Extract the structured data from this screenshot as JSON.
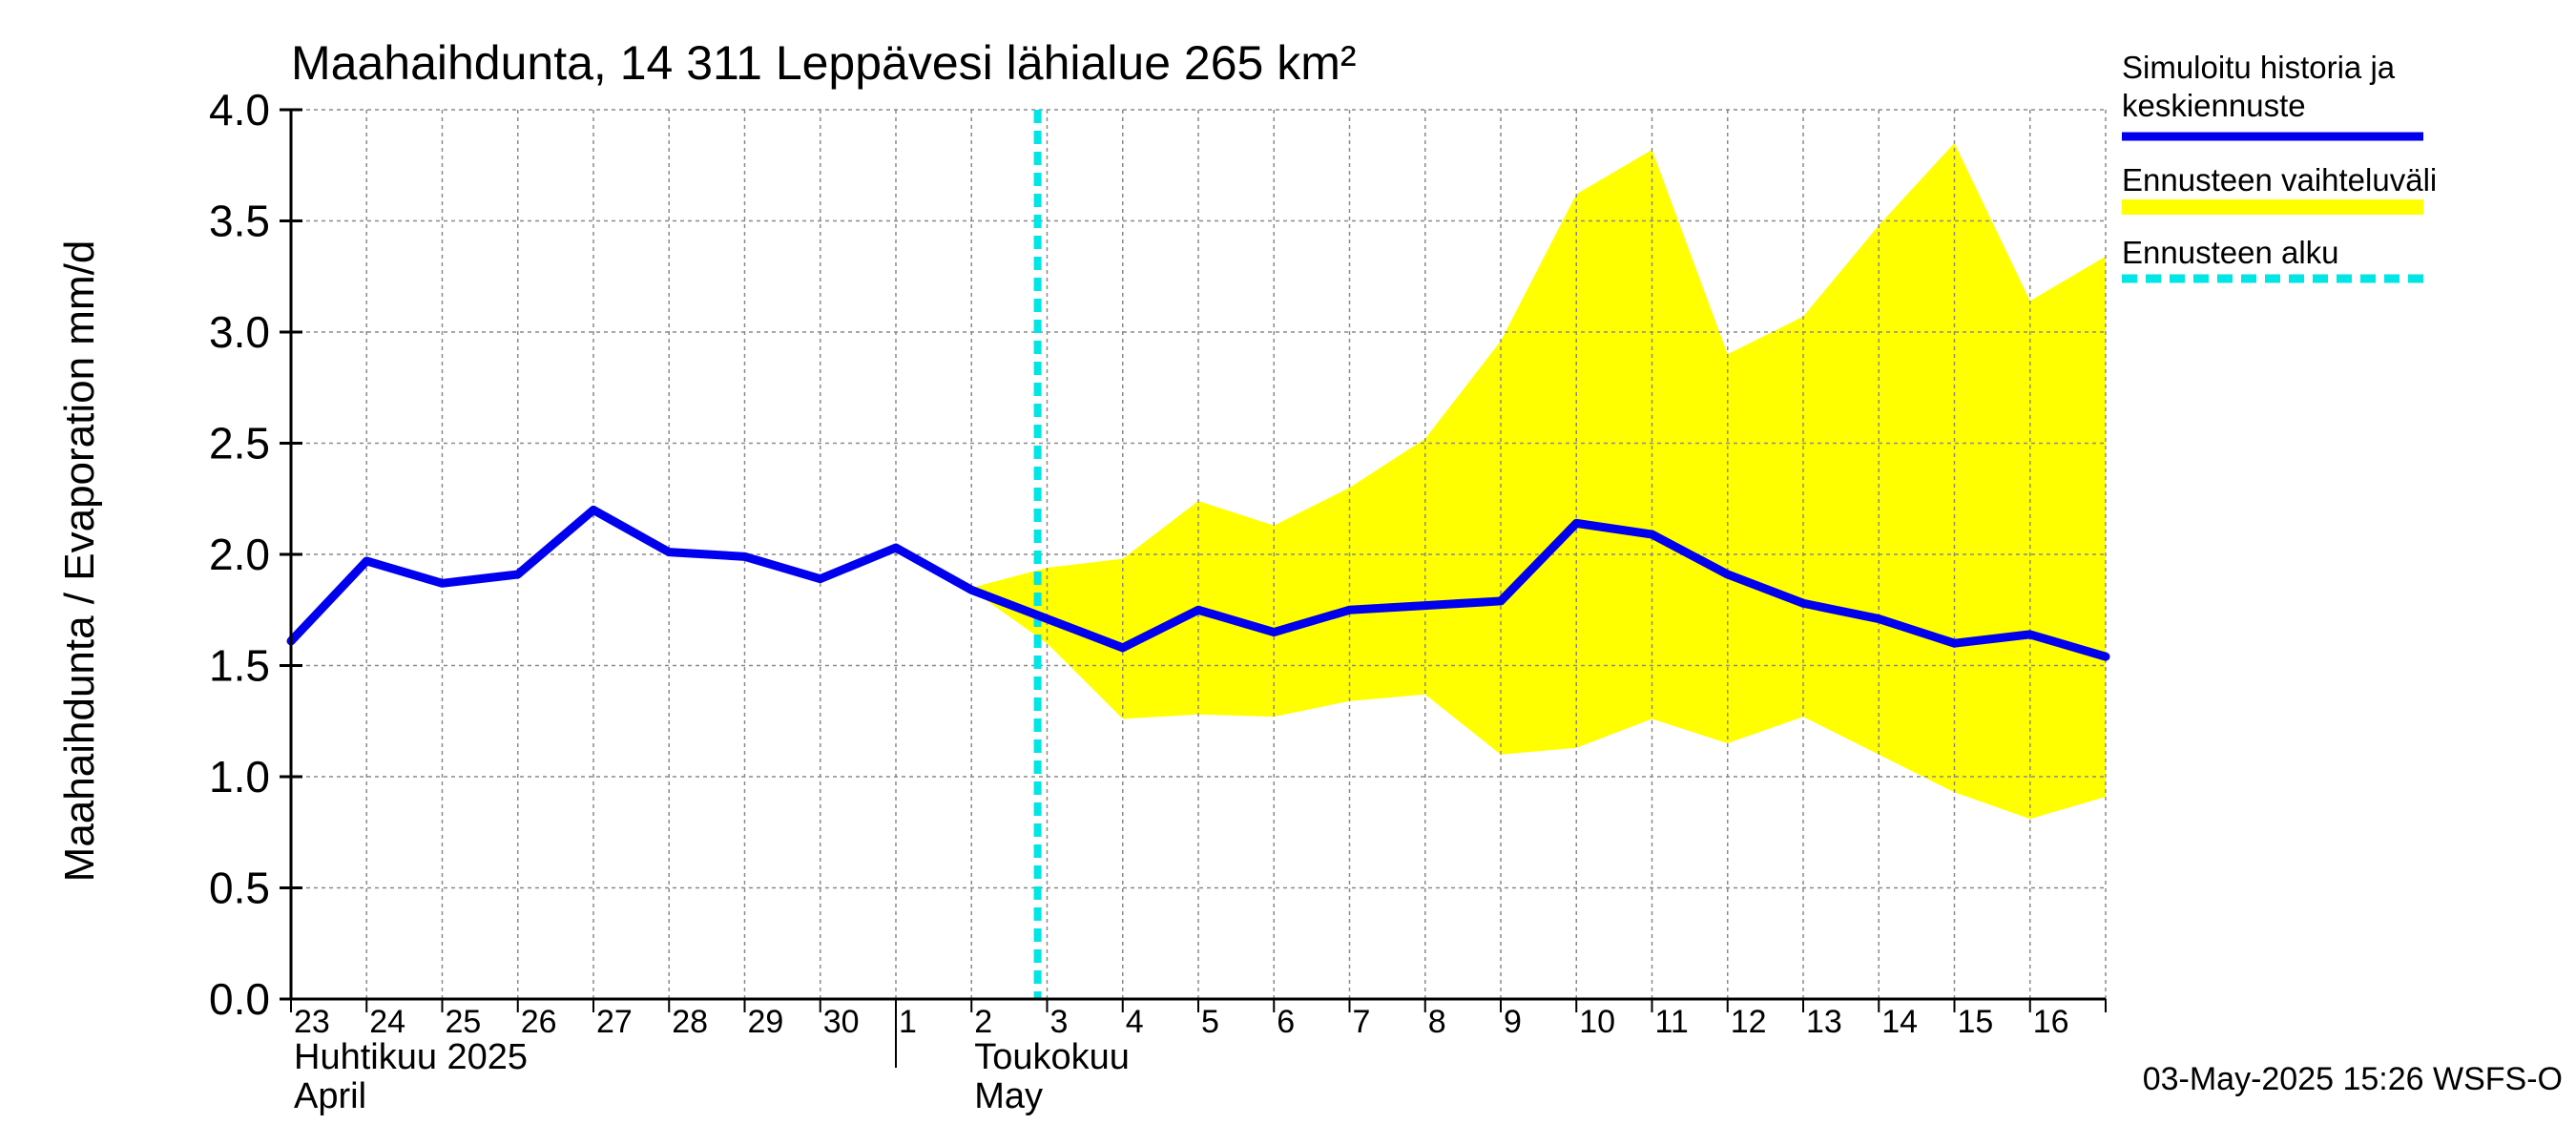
{
  "chart_data": {
    "type": "line",
    "title": "Maahaihdunta, 14 311 Leppävesi lähialue 265 km²",
    "ylabel": "Maahaihdunta / Evaporation   mm/d",
    "ylim": [
      0.0,
      4.0
    ],
    "yticks": [
      "0.0",
      "0.5",
      "1.0",
      "1.5",
      "2.0",
      "2.5",
      "3.0",
      "3.5",
      "4.0"
    ],
    "x_dates": [
      "2025-04-23",
      "2025-04-24",
      "2025-04-25",
      "2025-04-26",
      "2025-04-27",
      "2025-04-28",
      "2025-04-29",
      "2025-04-30",
      "2025-05-01",
      "2025-05-02",
      "2025-05-03",
      "2025-05-04",
      "2025-05-05",
      "2025-05-06",
      "2025-05-07",
      "2025-05-08",
      "2025-05-09",
      "2025-05-10",
      "2025-05-11",
      "2025-05-12",
      "2025-05-13",
      "2025-05-14",
      "2025-05-15",
      "2025-05-16",
      "2025-05-17"
    ],
    "xtick_labels": [
      "23",
      "24",
      "25",
      "26",
      "27",
      "28",
      "29",
      "30",
      "1",
      "2",
      "3",
      "4",
      "5",
      "6",
      "7",
      "8",
      "9",
      "10",
      "11",
      "12",
      "13",
      "14",
      "15",
      "16"
    ],
    "month_labels": [
      {
        "line1": "Huhtikuu  2025",
        "line2": "April"
      },
      {
        "line1": "Toukokuu",
        "line2": "May"
      }
    ],
    "series": [
      {
        "name": "Simuloitu historia ja keskiennuste",
        "color": "#0000ee",
        "values": [
          1.61,
          1.97,
          1.87,
          1.91,
          2.2,
          2.01,
          1.99,
          1.89,
          2.03,
          1.84,
          1.71,
          1.58,
          1.75,
          1.65,
          1.75,
          1.77,
          1.79,
          2.14,
          2.09,
          1.91,
          1.78,
          1.71,
          1.6,
          1.64,
          1.54
        ]
      }
    ],
    "band": {
      "name": "Ennusteen vaihteluväli",
      "color": "#ffff00",
      "start_index": 9,
      "upper": [
        1.85,
        1.94,
        1.98,
        2.24,
        2.13,
        2.3,
        2.52,
        2.96,
        3.62,
        3.82,
        2.9,
        3.07,
        3.48,
        3.85,
        3.14,
        3.34
      ],
      "lower": [
        1.84,
        1.6,
        1.26,
        1.28,
        1.27,
        1.34,
        1.37,
        1.1,
        1.13,
        1.26,
        1.15,
        1.27,
        1.1,
        0.93,
        0.81,
        0.91
      ]
    },
    "forecast_start": {
      "name": "Ennusteen alku",
      "color": "#00e5e5",
      "x": "2025-05-02T21:00"
    },
    "grid": true,
    "legend_position": "top-right outside"
  },
  "legend": [
    {
      "label_lines": [
        "Simuloitu historia ja",
        "keskiennuste"
      ]
    },
    {
      "label_lines": [
        "Ennusteen vaihteluväli"
      ]
    },
    {
      "label_lines": [
        "Ennusteen alku"
      ]
    }
  ],
  "footer": "03-May-2025 15:26 WSFS-O"
}
